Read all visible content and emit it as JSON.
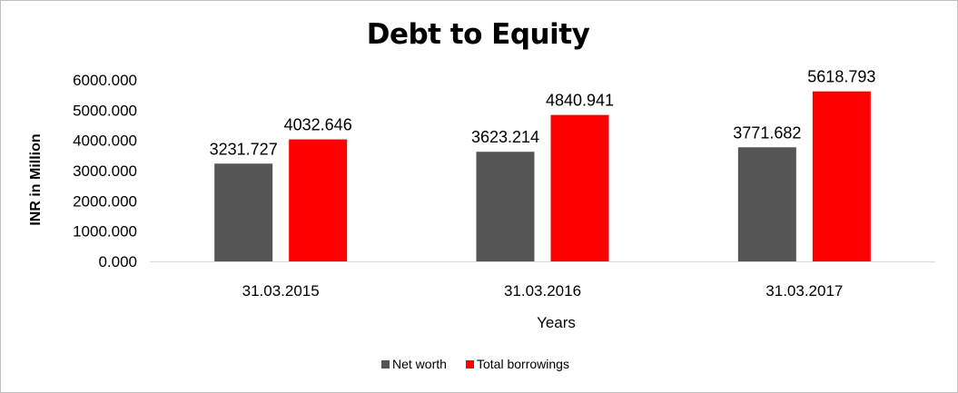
{
  "chart_data": {
    "type": "bar",
    "title": "Debt to Equity",
    "xlabel": "Years",
    "ylabel": "INR in Million",
    "categories": [
      "31.03.2015",
      "31.03.2016",
      "31.03.2017"
    ],
    "series": [
      {
        "name": "Net worth",
        "color": "#555555",
        "values": [
          3231.727,
          3623.214,
          3771.682
        ],
        "labels": [
          "3231.727",
          "3623.214",
          "3771.682"
        ]
      },
      {
        "name": "Total borrowings",
        "color": "#ff0000",
        "values": [
          4032.646,
          4840.941,
          5618.793
        ],
        "labels": [
          "4032.646",
          "4840.941",
          "5618.793"
        ]
      }
    ],
    "yticks": [
      "0.000",
      "1000.000",
      "2000.000",
      "3000.000",
      "4000.000",
      "5000.000",
      "6000.000"
    ],
    "ylim": [
      0,
      6000
    ],
    "grid": false,
    "legend_position": "bottom"
  }
}
